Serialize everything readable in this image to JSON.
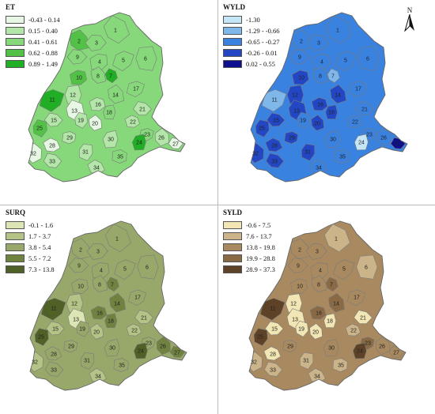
{
  "panels": [
    {
      "id": "et",
      "title": "ET",
      "legend": [
        {
          "label": "-0.43 - 0.14",
          "color": "#e6f7e3"
        },
        {
          "label": "0.15 - 0.40",
          "color": "#b3e6a8"
        },
        {
          "label": "0.41 - 0.61",
          "color": "#86d87a"
        },
        {
          "label": "0.62 - 0.88",
          "color": "#52c247"
        },
        {
          "label": "0.89 - 1.49",
          "color": "#1fae24"
        }
      ],
      "base_class": 2,
      "regions": [
        {
          "id": "1",
          "cls": 2
        },
        {
          "id": "2",
          "cls": 3
        },
        {
          "id": "3",
          "cls": 2
        },
        {
          "id": "4",
          "cls": 2
        },
        {
          "id": "5",
          "cls": 2
        },
        {
          "id": "6",
          "cls": 2
        },
        {
          "id": "7",
          "cls": 4
        },
        {
          "id": "8",
          "cls": 2
        },
        {
          "id": "9",
          "cls": 2
        },
        {
          "id": "10",
          "cls": 3
        },
        {
          "id": "11",
          "cls": 4
        },
        {
          "id": "12",
          "cls": 1
        },
        {
          "id": "13",
          "cls": 0
        },
        {
          "id": "14",
          "cls": 2
        },
        {
          "id": "15",
          "cls": 1
        },
        {
          "id": "16",
          "cls": 1
        },
        {
          "id": "17",
          "cls": 2
        },
        {
          "id": "18",
          "cls": 2
        },
        {
          "id": "19",
          "cls": 1
        },
        {
          "id": "20",
          "cls": 0
        },
        {
          "id": "21",
          "cls": 1
        },
        {
          "id": "22",
          "cls": 1
        },
        {
          "id": "23",
          "cls": 2
        },
        {
          "id": "24",
          "cls": 4
        },
        {
          "id": "25",
          "cls": 3
        },
        {
          "id": "26",
          "cls": 1
        },
        {
          "id": "27",
          "cls": 0
        },
        {
          "id": "28",
          "cls": 0
        },
        {
          "id": "29",
          "cls": 1
        },
        {
          "id": "30",
          "cls": 1
        },
        {
          "id": "31",
          "cls": 1
        },
        {
          "id": "32",
          "cls": 0
        },
        {
          "id": "33",
          "cls": 1
        },
        {
          "id": "34",
          "cls": 1
        },
        {
          "id": "35",
          "cls": 2
        }
      ]
    },
    {
      "id": "wyld",
      "title": "WYLD",
      "legend": [
        {
          "label": "-1.30",
          "color": "#c5e6f7"
        },
        {
          "label": "-1.29 - -0.66",
          "color": "#7fb7ea"
        },
        {
          "label": "-0.65 - -0.27",
          "color": "#3a82e0"
        },
        {
          "label": "-0.26 - 0.01",
          "color": "#2347c4"
        },
        {
          "label": "0.02 - 0.55",
          "color": "#0c108e"
        }
      ],
      "base_class": 2,
      "regions": [
        {
          "id": "1",
          "cls": 2
        },
        {
          "id": "2",
          "cls": 2
        },
        {
          "id": "3",
          "cls": 2
        },
        {
          "id": "4",
          "cls": 2
        },
        {
          "id": "5",
          "cls": 2
        },
        {
          "id": "6",
          "cls": 2
        },
        {
          "id": "7",
          "cls": 1
        },
        {
          "id": "8",
          "cls": 2
        },
        {
          "id": "9",
          "cls": 2
        },
        {
          "id": "10",
          "cls": 3
        },
        {
          "id": "11",
          "cls": 1
        },
        {
          "id": "12",
          "cls": 3
        },
        {
          "id": "13",
          "cls": 3
        },
        {
          "id": "14",
          "cls": 3
        },
        {
          "id": "15",
          "cls": 3
        },
        {
          "id": "16",
          "cls": 3
        },
        {
          "id": "17",
          "cls": 2
        },
        {
          "id": "18",
          "cls": 3
        },
        {
          "id": "19",
          "cls": 2
        },
        {
          "id": "20",
          "cls": 3
        },
        {
          "id": "21",
          "cls": 2
        },
        {
          "id": "22",
          "cls": 2
        },
        {
          "id": "23",
          "cls": 2
        },
        {
          "id": "24",
          "cls": 0
        },
        {
          "id": "25",
          "cls": 3
        },
        {
          "id": "26",
          "cls": 2
        },
        {
          "id": "27",
          "cls": 4
        },
        {
          "id": "28",
          "cls": 3
        },
        {
          "id": "29",
          "cls": 3
        },
        {
          "id": "30",
          "cls": 2
        },
        {
          "id": "31",
          "cls": 3
        },
        {
          "id": "32",
          "cls": 3
        },
        {
          "id": "33",
          "cls": 3
        },
        {
          "id": "34",
          "cls": 2
        },
        {
          "id": "35",
          "cls": 2
        }
      ]
    },
    {
      "id": "surq",
      "title": "SURQ",
      "legend": [
        {
          "label": "-0.1 - 1.6",
          "color": "#dbe6b4"
        },
        {
          "label": "1.7 - 3.7",
          "color": "#b4c486"
        },
        {
          "label": "3.8 - 5.4",
          "color": "#97a86a"
        },
        {
          "label": "5.5 - 7.2",
          "color": "#6f823f"
        },
        {
          "label": "7.3 - 13.8",
          "color": "#4f6126"
        }
      ],
      "base_class": 2,
      "regions": [
        {
          "id": "1",
          "cls": 2
        },
        {
          "id": "2",
          "cls": 2
        },
        {
          "id": "3",
          "cls": 2
        },
        {
          "id": "4",
          "cls": 2
        },
        {
          "id": "5",
          "cls": 2
        },
        {
          "id": "6",
          "cls": 2
        },
        {
          "id": "7",
          "cls": 3
        },
        {
          "id": "8",
          "cls": 2
        },
        {
          "id": "9",
          "cls": 2
        },
        {
          "id": "10",
          "cls": 2
        },
        {
          "id": "11",
          "cls": 4
        },
        {
          "id": "12",
          "cls": 1
        },
        {
          "id": "13",
          "cls": 0
        },
        {
          "id": "14",
          "cls": 3
        },
        {
          "id": "15",
          "cls": 1
        },
        {
          "id": "16",
          "cls": 3
        },
        {
          "id": "17",
          "cls": 2
        },
        {
          "id": "18",
          "cls": 3
        },
        {
          "id": "19",
          "cls": 2
        },
        {
          "id": "20",
          "cls": 1
        },
        {
          "id": "21",
          "cls": 1
        },
        {
          "id": "22",
          "cls": 1
        },
        {
          "id": "23",
          "cls": 2
        },
        {
          "id": "24",
          "cls": 4
        },
        {
          "id": "25",
          "cls": 4
        },
        {
          "id": "26",
          "cls": 3
        },
        {
          "id": "27",
          "cls": 3
        },
        {
          "id": "28",
          "cls": 2
        },
        {
          "id": "29",
          "cls": 2
        },
        {
          "id": "30",
          "cls": 2
        },
        {
          "id": "31",
          "cls": 2
        },
        {
          "id": "32",
          "cls": 1
        },
        {
          "id": "33",
          "cls": 2
        },
        {
          "id": "34",
          "cls": 1
        },
        {
          "id": "35",
          "cls": 2
        }
      ]
    },
    {
      "id": "syld",
      "title": "SYLD",
      "legend": [
        {
          "label": "-0.6 - 7.5",
          "color": "#f2e6b4"
        },
        {
          "label": "7.6 - 13.7",
          "color": "#cbb48a"
        },
        {
          "label": "13.8 - 19.8",
          "color": "#a98a60"
        },
        {
          "label": "19.9 - 28.8",
          "color": "#8a6a45"
        },
        {
          "label": "28.9 - 37.3",
          "color": "#5e4227"
        }
      ],
      "base_class": 2,
      "regions": [
        {
          "id": "1",
          "cls": 1
        },
        {
          "id": "2",
          "cls": 2
        },
        {
          "id": "3",
          "cls": 2
        },
        {
          "id": "4",
          "cls": 2
        },
        {
          "id": "5",
          "cls": 2
        },
        {
          "id": "6",
          "cls": 1
        },
        {
          "id": "7",
          "cls": 3
        },
        {
          "id": "8",
          "cls": 2
        },
        {
          "id": "9",
          "cls": 2
        },
        {
          "id": "10",
          "cls": 2
        },
        {
          "id": "11",
          "cls": 4
        },
        {
          "id": "12",
          "cls": 0
        },
        {
          "id": "13",
          "cls": 0
        },
        {
          "id": "14",
          "cls": 3
        },
        {
          "id": "15",
          "cls": 0
        },
        {
          "id": "16",
          "cls": 3
        },
        {
          "id": "17",
          "cls": 2
        },
        {
          "id": "18",
          "cls": 0
        },
        {
          "id": "19",
          "cls": 0
        },
        {
          "id": "20",
          "cls": 0
        },
        {
          "id": "21",
          "cls": 0
        },
        {
          "id": "22",
          "cls": 1
        },
        {
          "id": "23",
          "cls": 3
        },
        {
          "id": "24",
          "cls": 4
        },
        {
          "id": "25",
          "cls": 4
        },
        {
          "id": "26",
          "cls": 2
        },
        {
          "id": "27",
          "cls": 2
        },
        {
          "id": "28",
          "cls": 0
        },
        {
          "id": "29",
          "cls": 2
        },
        {
          "id": "30",
          "cls": 2
        },
        {
          "id": "31",
          "cls": 1
        },
        {
          "id": "32",
          "cls": 1
        },
        {
          "id": "33",
          "cls": 1
        },
        {
          "id": "34",
          "cls": 1
        },
        {
          "id": "35",
          "cls": 1
        }
      ]
    }
  ],
  "north_arrow": {
    "label": "N",
    "icon": "north-arrow-icon"
  },
  "colors": {
    "boundary": "#7a7a7a",
    "panel_divider": "#bbbbbb"
  }
}
